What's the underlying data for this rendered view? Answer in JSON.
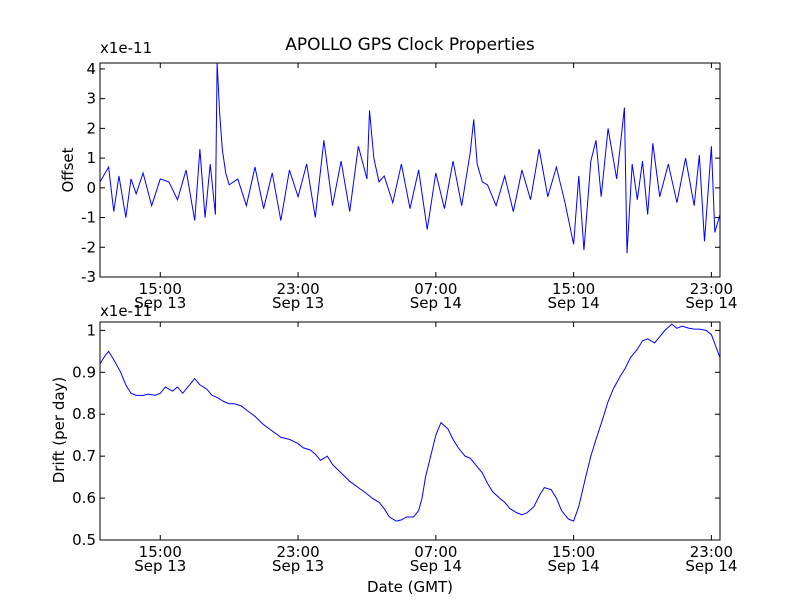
{
  "chart_data": {
    "figure_title": "APOLLO GPS Clock Properties",
    "xlabel": "Date (GMT)",
    "x_unit": "hours since Sep 13 00:00 GMT",
    "xlim": [
      11.5,
      47.5
    ],
    "xticks": [
      {
        "x": 15,
        "time": "15:00",
        "date": "Sep 13"
      },
      {
        "x": 23,
        "time": "23:00",
        "date": "Sep 13"
      },
      {
        "x": 31,
        "time": "07:00",
        "date": "Sep 14"
      },
      {
        "x": 39,
        "time": "15:00",
        "date": "Sep 14"
      },
      {
        "x": 47,
        "time": "23:00",
        "date": "Sep 14"
      }
    ],
    "panels": [
      {
        "type": "line",
        "ylabel": "Offset",
        "scale_label": "x1e-11",
        "ylim": [
          -3,
          4.2
        ],
        "yticks": [
          -3,
          -2,
          -1,
          0,
          1,
          2,
          3,
          4
        ],
        "line_color": "#0000ff",
        "series": [
          {
            "name": "Offset",
            "x": [
              11.5,
              12.0,
              12.3,
              12.6,
              13.0,
              13.3,
              13.6,
              14.0,
              14.5,
              15.0,
              15.5,
              16.0,
              16.5,
              17.0,
              17.3,
              17.6,
              17.9,
              18.2,
              18.3,
              18.45,
              18.6,
              18.8,
              19.0,
              19.5,
              20.0,
              20.5,
              21.0,
              21.5,
              22.0,
              22.5,
              23.0,
              23.5,
              24.0,
              24.5,
              25.0,
              25.5,
              26.0,
              26.5,
              27.0,
              27.15,
              27.4,
              27.7,
              28.0,
              28.5,
              29.0,
              29.5,
              30.0,
              30.5,
              31.0,
              31.5,
              32.0,
              32.5,
              33.0,
              33.2,
              33.4,
              33.7,
              34.0,
              34.5,
              35.0,
              35.5,
              36.0,
              36.5,
              37.0,
              37.5,
              38.0,
              38.5,
              39.0,
              39.3,
              39.6,
              40.0,
              40.3,
              40.6,
              41.0,
              41.5,
              41.95,
              42.1,
              42.4,
              42.7,
              43.0,
              43.3,
              43.6,
              44.0,
              44.5,
              45.0,
              45.5,
              46.0,
              46.3,
              46.6,
              47.0,
              47.2,
              47.5
            ],
            "values": [
              0.2,
              0.7,
              -0.8,
              0.4,
              -1.0,
              0.3,
              -0.2,
              0.5,
              -0.6,
              0.3,
              0.2,
              -0.4,
              0.6,
              -1.1,
              1.3,
              -1.0,
              0.8,
              -0.9,
              4.2,
              2.5,
              1.3,
              0.5,
              0.1,
              0.3,
              -0.6,
              0.7,
              -0.7,
              0.5,
              -1.1,
              0.6,
              -0.3,
              0.8,
              -1.0,
              1.6,
              -0.6,
              0.9,
              -0.8,
              1.4,
              0.3,
              2.6,
              1.0,
              0.2,
              0.4,
              -0.5,
              0.8,
              -0.7,
              0.6,
              -1.4,
              0.5,
              -0.7,
              0.9,
              -0.6,
              1.2,
              2.3,
              0.8,
              0.2,
              0.1,
              -0.6,
              0.4,
              -0.8,
              0.6,
              -0.4,
              1.3,
              -0.3,
              0.7,
              -0.5,
              -1.9,
              0.4,
              -2.1,
              0.9,
              1.6,
              -0.3,
              2.0,
              0.3,
              2.7,
              -2.2,
              0.8,
              -0.4,
              0.9,
              -0.9,
              1.5,
              -0.3,
              0.8,
              -0.5,
              1.0,
              -0.6,
              1.1,
              -1.8,
              1.4,
              -1.5,
              -0.9
            ]
          }
        ]
      },
      {
        "type": "line",
        "ylabel": "Drift (per day)",
        "scale_label": "x1e-11",
        "ylim": [
          0.5,
          1.02
        ],
        "yticks": [
          0.5,
          0.6,
          0.7,
          0.8,
          0.9,
          1.0
        ],
        "line_color": "#0000ff",
        "series": [
          {
            "name": "Drift",
            "x": [
              11.5,
              11.8,
              12.0,
              12.3,
              12.7,
              13.0,
              13.3,
              13.6,
              14.0,
              14.3,
              14.7,
              15.0,
              15.3,
              15.7,
              16.0,
              16.3,
              16.7,
              17.0,
              17.3,
              17.7,
              18.0,
              18.3,
              18.7,
              19.0,
              19.3,
              19.7,
              20.0,
              20.5,
              21.0,
              21.5,
              22.0,
              22.5,
              23.0,
              23.3,
              23.7,
              24.0,
              24.3,
              24.7,
              25.0,
              25.5,
              26.0,
              26.5,
              27.0,
              27.3,
              27.7,
              28.0,
              28.3,
              28.7,
              29.0,
              29.3,
              29.7,
              30.0,
              30.2,
              30.4,
              30.7,
              31.0,
              31.3,
              31.7,
              32.0,
              32.3,
              32.7,
              33.0,
              33.3,
              33.7,
              34.0,
              34.3,
              34.7,
              35.0,
              35.3,
              35.7,
              36.0,
              36.3,
              36.7,
              37.0,
              37.3,
              37.7,
              38.0,
              38.3,
              38.7,
              39.0,
              39.3,
              39.7,
              40.0,
              40.3,
              40.7,
              41.0,
              41.3,
              41.7,
              42.0,
              42.3,
              42.7,
              43.0,
              43.3,
              43.7,
              44.0,
              44.3,
              44.7,
              45.0,
              45.3,
              45.7,
              46.0,
              46.3,
              46.7,
              47.0,
              47.5
            ],
            "values": [
              0.92,
              0.94,
              0.95,
              0.93,
              0.9,
              0.87,
              0.85,
              0.845,
              0.845,
              0.848,
              0.845,
              0.85,
              0.865,
              0.855,
              0.865,
              0.85,
              0.87,
              0.885,
              0.87,
              0.86,
              0.845,
              0.84,
              0.83,
              0.825,
              0.825,
              0.82,
              0.81,
              0.795,
              0.775,
              0.76,
              0.745,
              0.74,
              0.73,
              0.72,
              0.715,
              0.705,
              0.69,
              0.7,
              0.68,
              0.66,
              0.64,
              0.625,
              0.61,
              0.6,
              0.59,
              0.575,
              0.555,
              0.545,
              0.548,
              0.555,
              0.555,
              0.57,
              0.6,
              0.65,
              0.7,
              0.75,
              0.78,
              0.765,
              0.74,
              0.72,
              0.7,
              0.695,
              0.68,
              0.66,
              0.635,
              0.615,
              0.6,
              0.59,
              0.575,
              0.565,
              0.56,
              0.565,
              0.58,
              0.605,
              0.625,
              0.62,
              0.6,
              0.57,
              0.55,
              0.545,
              0.58,
              0.65,
              0.7,
              0.74,
              0.79,
              0.83,
              0.86,
              0.89,
              0.91,
              0.935,
              0.955,
              0.975,
              0.98,
              0.97,
              0.985,
              1.0,
              1.015,
              1.005,
              1.01,
              1.005,
              1.003,
              1.003,
              1.0,
              0.99,
              0.935
            ]
          }
        ]
      }
    ]
  }
}
